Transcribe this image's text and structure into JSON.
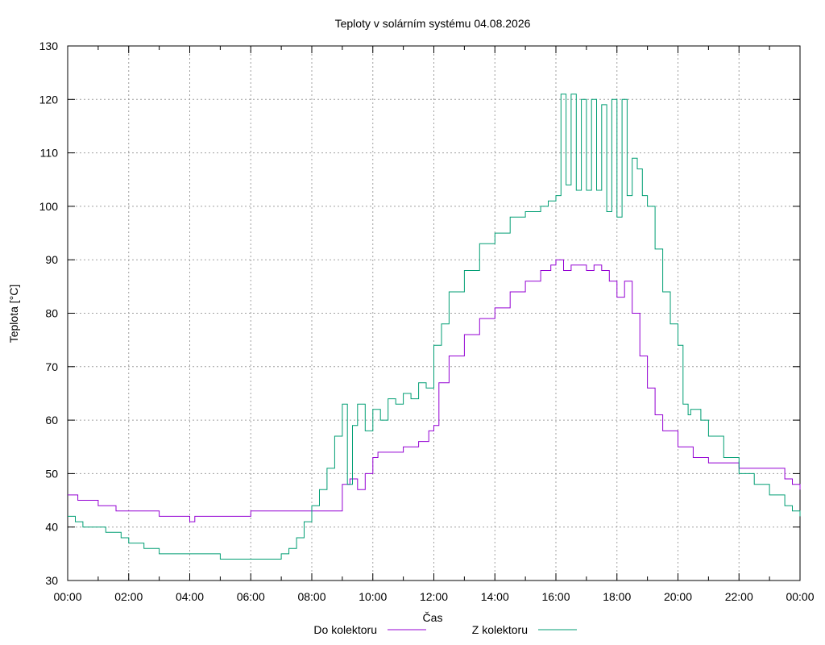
{
  "chart_data": {
    "type": "line",
    "title": "Teploty v solárním systému 04.08.2026",
    "xlabel": "Čas",
    "ylabel": "Teplota [°C]",
    "xlim": [
      0,
      24
    ],
    "ylim": [
      30,
      130
    ],
    "x_ticks": [
      "00:00",
      "02:00",
      "04:00",
      "06:00",
      "08:00",
      "10:00",
      "12:00",
      "14:00",
      "16:00",
      "18:00",
      "20:00",
      "22:00",
      "00:00"
    ],
    "y_ticks": [
      30,
      40,
      50,
      60,
      70,
      80,
      90,
      100,
      110,
      120,
      130
    ],
    "grid": true,
    "legend_position": "bottom",
    "series": [
      {
        "name": "Do kolektoru",
        "color": "#9400d3",
        "x": [
          "00:00",
          "00:20",
          "00:40",
          "01:00",
          "01:20",
          "01:35",
          "02:00",
          "02:30",
          "03:00",
          "03:30",
          "04:00",
          "04:10",
          "04:20",
          "05:00",
          "05:30",
          "06:00",
          "06:30",
          "07:00",
          "08:00",
          "08:55",
          "09:00",
          "09:15",
          "09:30",
          "09:45",
          "10:00",
          "10:10",
          "10:30",
          "11:00",
          "11:30",
          "11:50",
          "12:00",
          "12:10",
          "12:30",
          "13:00",
          "13:30",
          "14:00",
          "14:30",
          "15:00",
          "15:30",
          "15:50",
          "16:00",
          "16:15",
          "16:30",
          "16:45",
          "17:00",
          "17:15",
          "17:30",
          "17:45",
          "18:00",
          "18:15",
          "18:30",
          "18:45",
          "19:00",
          "19:15",
          "19:30",
          "20:00",
          "20:30",
          "21:00",
          "21:30",
          "22:00",
          "22:30",
          "23:00",
          "23:30",
          "23:45",
          "00:00"
        ],
        "values": [
          46,
          45,
          45,
          44,
          44,
          43,
          43,
          43,
          42,
          42,
          41,
          42,
          42,
          42,
          42,
          43,
          43,
          43,
          43,
          43,
          48,
          49,
          47,
          50,
          53,
          54,
          54,
          55,
          56,
          58,
          59,
          67,
          72,
          76,
          79,
          81,
          84,
          86,
          88,
          89,
          90,
          88,
          89,
          89,
          88,
          89,
          88,
          86,
          83,
          86,
          80,
          72,
          66,
          61,
          58,
          55,
          53,
          52,
          52,
          51,
          51,
          51,
          49,
          48,
          47
        ]
      },
      {
        "name": "Z kolektoru",
        "color": "#009e73",
        "x": [
          "00:00",
          "00:15",
          "00:30",
          "01:00",
          "01:15",
          "01:30",
          "01:45",
          "02:00",
          "02:30",
          "03:00",
          "04:00",
          "04:45",
          "05:00",
          "05:30",
          "06:00",
          "06:30",
          "07:00",
          "07:15",
          "07:30",
          "07:45",
          "08:00",
          "08:15",
          "08:30",
          "08:45",
          "09:00",
          "09:10",
          "09:20",
          "09:30",
          "09:45",
          "10:00",
          "10:15",
          "10:30",
          "10:45",
          "11:00",
          "11:15",
          "11:30",
          "11:45",
          "12:00",
          "12:15",
          "12:30",
          "13:00",
          "13:30",
          "14:00",
          "14:30",
          "15:00",
          "15:30",
          "15:45",
          "16:00",
          "16:10",
          "16:20",
          "16:30",
          "16:40",
          "16:50",
          "17:00",
          "17:10",
          "17:20",
          "17:30",
          "17:40",
          "17:50",
          "18:00",
          "18:10",
          "18:20",
          "18:30",
          "18:40",
          "18:50",
          "19:00",
          "19:15",
          "19:30",
          "19:45",
          "20:00",
          "20:10",
          "20:20",
          "20:25",
          "20:30",
          "20:45",
          "21:00",
          "21:30",
          "22:00",
          "22:30",
          "23:00",
          "23:30",
          "23:45",
          "00:00"
        ],
        "values": [
          42,
          41,
          40,
          40,
          39,
          39,
          38,
          37,
          36,
          35,
          35,
          35,
          34,
          34,
          34,
          34,
          35,
          36,
          38,
          41,
          44,
          47,
          51,
          57,
          63,
          48,
          59,
          63,
          58,
          62,
          60,
          64,
          63,
          65,
          64,
          67,
          66,
          74,
          78,
          84,
          88,
          93,
          95,
          98,
          99,
          100,
          101,
          102,
          121,
          104,
          121,
          103,
          120,
          103,
          120,
          103,
          119,
          99,
          120,
          98,
          120,
          102,
          109,
          107,
          102,
          100,
          92,
          84,
          78,
          74,
          63,
          61,
          62,
          62,
          60,
          57,
          53,
          50,
          48,
          46,
          44,
          43,
          42
        ]
      }
    ]
  }
}
